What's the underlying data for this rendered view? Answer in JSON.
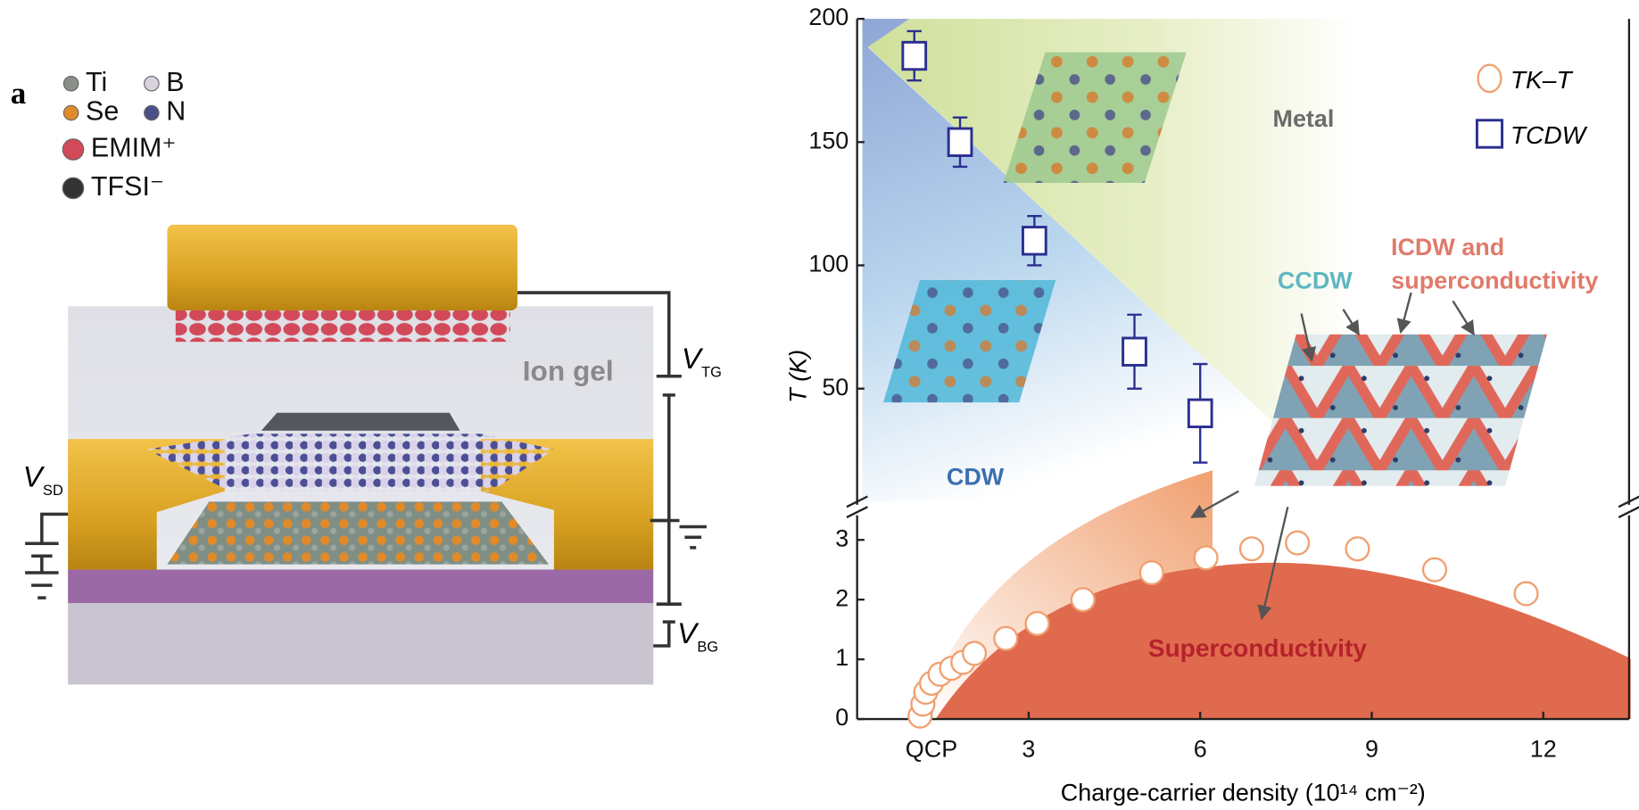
{
  "panel_a": {
    "label": "a",
    "legend": [
      "Ti",
      "B",
      "Se",
      "N",
      "EMIM⁺",
      "TFSI⁻"
    ],
    "ion_gel": "Ion gel",
    "voltages": [
      {
        "symbol": "V",
        "sub": "TG"
      },
      {
        "symbol": "V",
        "sub": "SD"
      },
      {
        "symbol": "V",
        "sub": "BG"
      }
    ]
  },
  "chart_data": [
    {
      "type": "scatter",
      "ylabel": "T (K)",
      "xlim": [
        0,
        13.5
      ],
      "ylim": [
        5,
        200
      ],
      "yticks": [
        50,
        100,
        150,
        200
      ],
      "series": [
        {
          "name": "TCDW",
          "color": "#2b2f8f",
          "marker": "square",
          "x": [
            1.0,
            1.8,
            3.1,
            4.85,
            6.0
          ],
          "values": [
            185,
            150,
            110,
            65,
            40
          ],
          "errors": [
            10,
            10,
            10,
            15,
            20
          ]
        }
      ],
      "annotations": [
        "Metal",
        "CDW",
        "CCDW",
        "ICDW and",
        "superconductivity"
      ]
    },
    {
      "type": "scatter",
      "xlabel": "Charge-carrier density (10¹⁴ cm⁻²)",
      "xlim": [
        0,
        13.5
      ],
      "ylim": [
        0,
        3.5
      ],
      "xticks": [
        {
          "value": 1.3,
          "label": "QCP"
        },
        3,
        6,
        9,
        12
      ],
      "yticks": [
        0,
        1,
        2,
        3
      ],
      "series": [
        {
          "name": "TK–T",
          "color": "#f0a070",
          "marker": "circle",
          "x": [
            1.1,
            1.15,
            1.2,
            1.3,
            1.45,
            1.65,
            1.85,
            2.05,
            2.6,
            3.15,
            3.95,
            5.15,
            6.1,
            6.9,
            7.7,
            8.75,
            10.1,
            11.7
          ],
          "values": [
            0.05,
            0.25,
            0.45,
            0.6,
            0.75,
            0.85,
            0.95,
            1.1,
            1.35,
            1.6,
            2.0,
            2.45,
            2.7,
            2.85,
            2.95,
            2.85,
            2.5,
            2.1
          ]
        }
      ],
      "annotations": [
        "Superconductivity"
      ]
    }
  ]
}
